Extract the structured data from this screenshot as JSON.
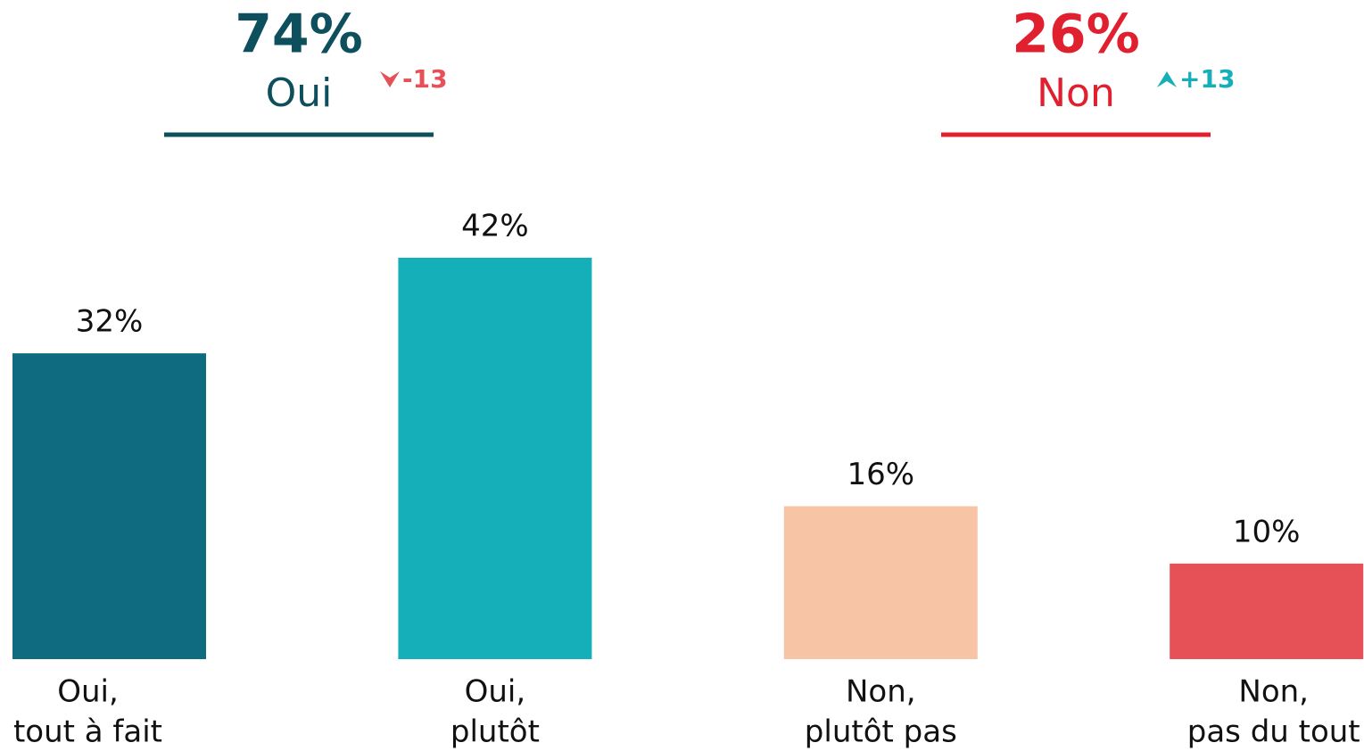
{
  "chart_data": {
    "type": "bar",
    "groups": [
      {
        "name": "Oui",
        "value": 74,
        "value_label": "74%",
        "change": -13,
        "change_label": "-13",
        "color": "#0d4f5c",
        "change_color": "#e65157"
      },
      {
        "name": "Non",
        "value": 26,
        "value_label": "26%",
        "change": 13,
        "change_label": "+13",
        "color": "#e0202e",
        "change_color": "#14afb8"
      }
    ],
    "categories": [
      [
        "Oui,",
        "tout à fait"
      ],
      [
        "Oui,",
        "plutôt"
      ],
      [
        "Non,",
        "plutôt pas"
      ],
      [
        "Non,",
        "pas du tout"
      ]
    ],
    "values": [
      32,
      42,
      16,
      10
    ],
    "value_labels": [
      "32%",
      "42%",
      "16%",
      "10%"
    ],
    "colors": [
      "#0f6b7f",
      "#14afb8",
      "#f7c4a5",
      "#e65157"
    ]
  }
}
